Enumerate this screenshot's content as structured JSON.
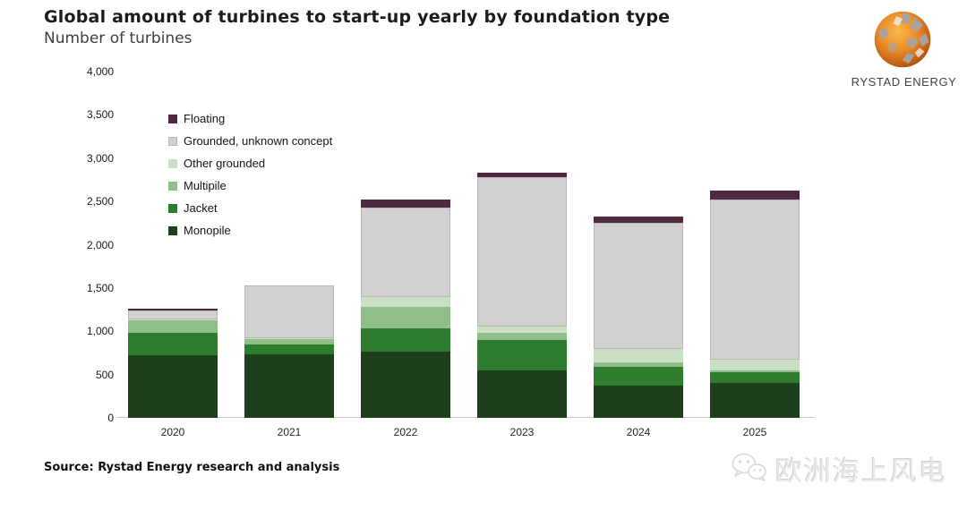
{
  "header": {
    "title": "Global amount of turbines to start-up yearly by foundation type",
    "subtitle": "Number of turbines"
  },
  "logo": {
    "brand": "RYSTAD ENERGY"
  },
  "source_line": "Source: Rystad Energy research and analysis",
  "watermark": {
    "text": "欧洲海上风电",
    "icon": "wechat-icon"
  },
  "colors": {
    "monopile": "#1e3f1c",
    "jacket": "#2e7d2f",
    "multipile": "#8fbe88",
    "other_grounded": "#cbdfc4",
    "grounded_unknown": "#d2d0d1",
    "grounded_unknown_border": "#b9b6b7",
    "floating": "#4f2940",
    "axis": "#c7c7c7",
    "logo_orange": "#e07b20",
    "logo_gray": "#a8a4a1"
  },
  "chart_data": {
    "type": "bar",
    "stacked": true,
    "title": "Global amount of turbines to start-up yearly by foundation type",
    "ylabel": "Number of turbines",
    "xlabel": "",
    "categories": [
      "2020",
      "2021",
      "2022",
      "2023",
      "2024",
      "2025"
    ],
    "series": [
      {
        "name": "Monopile",
        "color": "#1e3f1c",
        "values": [
          720,
          730,
          770,
          550,
          370,
          400
        ]
      },
      {
        "name": "Jacket",
        "color": "#2e7d2f",
        "values": [
          260,
          120,
          260,
          350,
          220,
          130
        ]
      },
      {
        "name": "Multipile",
        "color": "#8fbe88",
        "values": [
          150,
          60,
          250,
          80,
          50,
          20
        ]
      },
      {
        "name": "Other grounded",
        "color": "#cbdfc4",
        "values": [
          10,
          10,
          120,
          80,
          160,
          120
        ]
      },
      {
        "name": "Grounded, unknown concept",
        "color": "#d2d0d1",
        "values": [
          100,
          610,
          1030,
          1720,
          1450,
          1850
        ]
      },
      {
        "name": "Floating",
        "color": "#4f2940",
        "values": [
          25,
          0,
          90,
          50,
          80,
          110
        ]
      }
    ],
    "totals": [
      1265,
      1530,
      2520,
      2830,
      2330,
      2630
    ],
    "ylim": [
      0,
      4000
    ],
    "ytick_step": 500,
    "ytick_labels": [
      "0",
      "500",
      "1,000",
      "1,500",
      "2,000",
      "2,500",
      "3,000",
      "3,500",
      "4,000"
    ],
    "grid": false,
    "legend_position": "upper-left-inside",
    "legend_order_top_to_bottom": [
      "Floating",
      "Grounded, unknown concept",
      "Other grounded",
      "Multipile",
      "Jacket",
      "Monopile"
    ]
  }
}
